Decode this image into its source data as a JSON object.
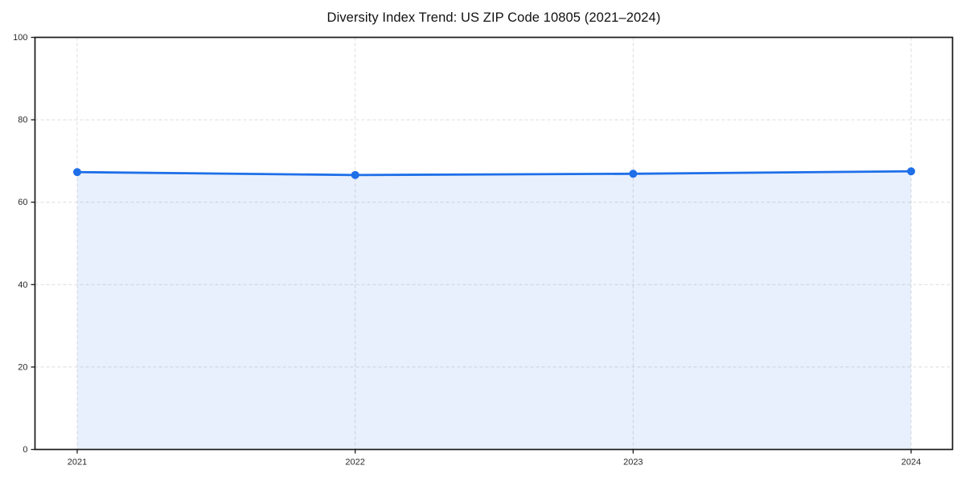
{
  "chart_data": {
    "type": "line",
    "title": "Diversity Index Trend: US ZIP Code 10805 (2021–2024)",
    "x": [
      2021,
      2022,
      2023,
      2024
    ],
    "series": [
      {
        "name": "Diversity Index",
        "values": [
          67.3,
          66.6,
          66.9,
          67.5
        ]
      }
    ],
    "xlabel": "",
    "ylabel": "",
    "ylim": [
      0,
      100
    ],
    "yticks": [
      0,
      20,
      40,
      60,
      80,
      100
    ],
    "xticklabels": [
      "2021",
      "2022",
      "2023",
      "2024"
    ],
    "grid": "dashed-both",
    "legend_position": "none",
    "area_fill": true,
    "markers": "circle",
    "colors": {
      "line": "#1e6fe8",
      "marker": "#1e6fe8",
      "fill": "rgba(30,111,232,0.10)",
      "grid": "#dcdcdc",
      "spine": "#1a1a1a",
      "tick_label": "#2b2b2b",
      "title": "#111111",
      "background": "#ffffff"
    }
  }
}
